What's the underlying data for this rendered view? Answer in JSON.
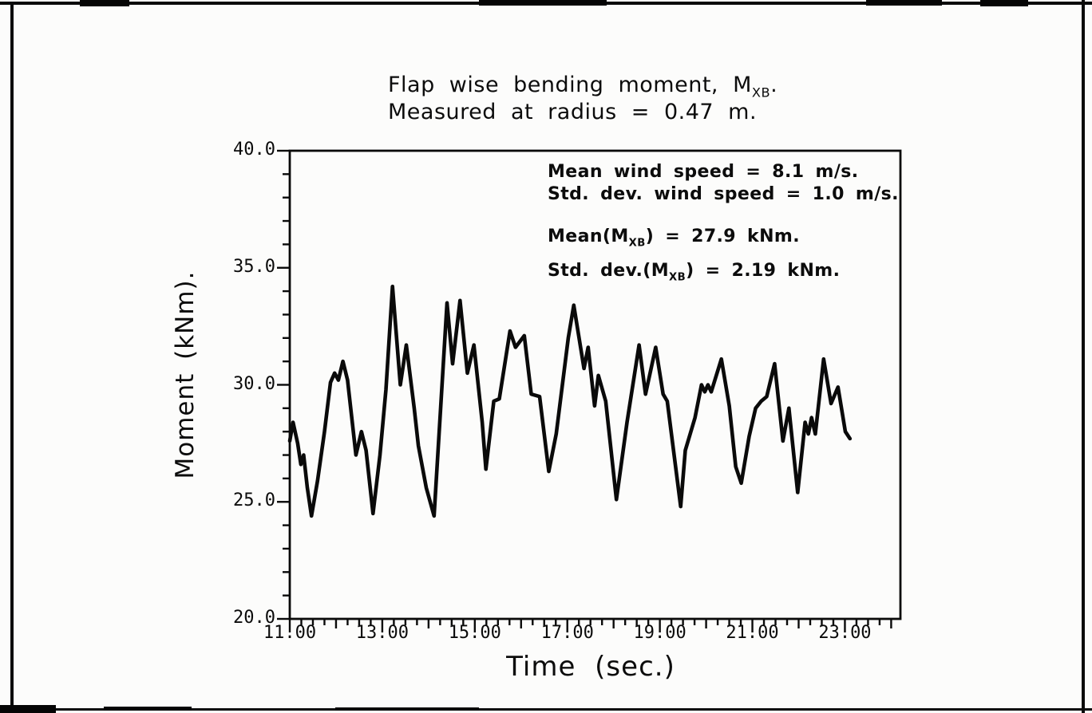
{
  "figure": {
    "title_line1": "Flap wise bending moment, M~XB~.",
    "title_line2": "Measured at radius = 0.47 m.",
    "ylabel": "Moment (kNm).",
    "xlabel": "Time (sec.)",
    "annotations": {
      "line1": "Mean wind speed = 8.1 m/s.",
      "line2": "Std. dev. wind speed = 1.0 m/s.",
      "line3": "Mean(M~XB~) = 27.9 kNm.",
      "line4": "Std. dev.(M~XB~) = 2.19 kNm."
    }
  },
  "chart_data": {
    "type": "line",
    "title": "Flap wise bending moment, M_XB. Measured at radius = 0.47 m.",
    "xlabel": "Time (sec.)",
    "ylabel": "Moment (kNm).",
    "xlim": [
      11.0,
      24.2
    ],
    "ylim": [
      20.0,
      40.0
    ],
    "x_ticks": [
      {
        "value": 11,
        "label": "11.00"
      },
      {
        "value": 13,
        "label": "13.00"
      },
      {
        "value": 15,
        "label": "15.00"
      },
      {
        "value": 17,
        "label": "17.00"
      },
      {
        "value": 19,
        "label": "19.00"
      },
      {
        "value": 21,
        "label": "21.00"
      },
      {
        "value": 23,
        "label": "23.00"
      }
    ],
    "y_ticks": [
      {
        "value": 20,
        "label": "20.0"
      },
      {
        "value": 25,
        "label": "25.0"
      },
      {
        "value": 30,
        "label": "30.0"
      },
      {
        "value": 35,
        "label": "35.0"
      },
      {
        "value": 40,
        "label": "40.0"
      }
    ],
    "x_minor_step": 0.25,
    "y_minor_step": 1,
    "grid": false,
    "line_color": "#0a0a0a",
    "stats": {
      "mean_wind_speed_ms": 8.1,
      "std_dev_wind_speed_ms": 1.0,
      "mean_moment_kNm": 27.9,
      "std_dev_moment_kNm": 2.19
    },
    "series": [
      {
        "name": "flapwise_bending_moment",
        "points": [
          [
            11.0,
            27.6
          ],
          [
            11.07,
            28.4
          ],
          [
            11.17,
            27.5
          ],
          [
            11.24,
            26.6
          ],
          [
            11.3,
            27.0
          ],
          [
            11.38,
            25.6
          ],
          [
            11.47,
            24.4
          ],
          [
            11.6,
            25.9
          ],
          [
            11.75,
            28.0
          ],
          [
            11.88,
            30.1
          ],
          [
            11.97,
            30.5
          ],
          [
            12.05,
            30.2
          ],
          [
            12.15,
            31.0
          ],
          [
            12.25,
            30.2
          ],
          [
            12.43,
            27.0
          ],
          [
            12.55,
            28.0
          ],
          [
            12.65,
            27.2
          ],
          [
            12.8,
            24.5
          ],
          [
            12.95,
            27.0
          ],
          [
            13.08,
            29.8
          ],
          [
            13.22,
            34.2
          ],
          [
            13.39,
            30.0
          ],
          [
            13.52,
            31.7
          ],
          [
            13.69,
            29.0
          ],
          [
            13.78,
            27.4
          ],
          [
            13.95,
            25.6
          ],
          [
            14.12,
            24.4
          ],
          [
            14.4,
            33.5
          ],
          [
            14.52,
            30.9
          ],
          [
            14.68,
            33.6
          ],
          [
            14.84,
            30.5
          ],
          [
            14.98,
            31.7
          ],
          [
            15.16,
            28.4
          ],
          [
            15.24,
            26.4
          ],
          [
            15.41,
            29.3
          ],
          [
            15.53,
            29.4
          ],
          [
            15.76,
            32.3
          ],
          [
            15.88,
            31.6
          ],
          [
            16.07,
            32.1
          ],
          [
            16.22,
            29.6
          ],
          [
            16.4,
            29.5
          ],
          [
            16.6,
            26.3
          ],
          [
            16.76,
            27.9
          ],
          [
            17.02,
            32.0
          ],
          [
            17.14,
            33.4
          ],
          [
            17.36,
            30.7
          ],
          [
            17.45,
            31.6
          ],
          [
            17.59,
            29.1
          ],
          [
            17.67,
            30.4
          ],
          [
            17.83,
            29.3
          ],
          [
            18.06,
            25.1
          ],
          [
            18.29,
            28.4
          ],
          [
            18.55,
            31.7
          ],
          [
            18.69,
            29.6
          ],
          [
            18.91,
            31.6
          ],
          [
            19.07,
            29.6
          ],
          [
            19.16,
            29.3
          ],
          [
            19.45,
            24.8
          ],
          [
            19.55,
            27.2
          ],
          [
            19.76,
            28.6
          ],
          [
            19.9,
            30.0
          ],
          [
            19.97,
            29.7
          ],
          [
            20.04,
            30.0
          ],
          [
            20.11,
            29.7
          ],
          [
            20.33,
            31.1
          ],
          [
            20.5,
            29.1
          ],
          [
            20.64,
            26.5
          ],
          [
            20.76,
            25.8
          ],
          [
            20.93,
            27.8
          ],
          [
            21.07,
            29.0
          ],
          [
            21.19,
            29.3
          ],
          [
            21.31,
            29.5
          ],
          [
            21.48,
            30.9
          ],
          [
            21.66,
            27.6
          ],
          [
            21.79,
            29.0
          ],
          [
            21.98,
            25.4
          ],
          [
            22.14,
            28.4
          ],
          [
            22.21,
            27.9
          ],
          [
            22.28,
            28.6
          ],
          [
            22.36,
            27.9
          ],
          [
            22.54,
            31.1
          ],
          [
            22.7,
            29.2
          ],
          [
            22.85,
            29.9
          ],
          [
            23.01,
            28.0
          ],
          [
            23.11,
            27.7
          ]
        ]
      }
    ]
  }
}
